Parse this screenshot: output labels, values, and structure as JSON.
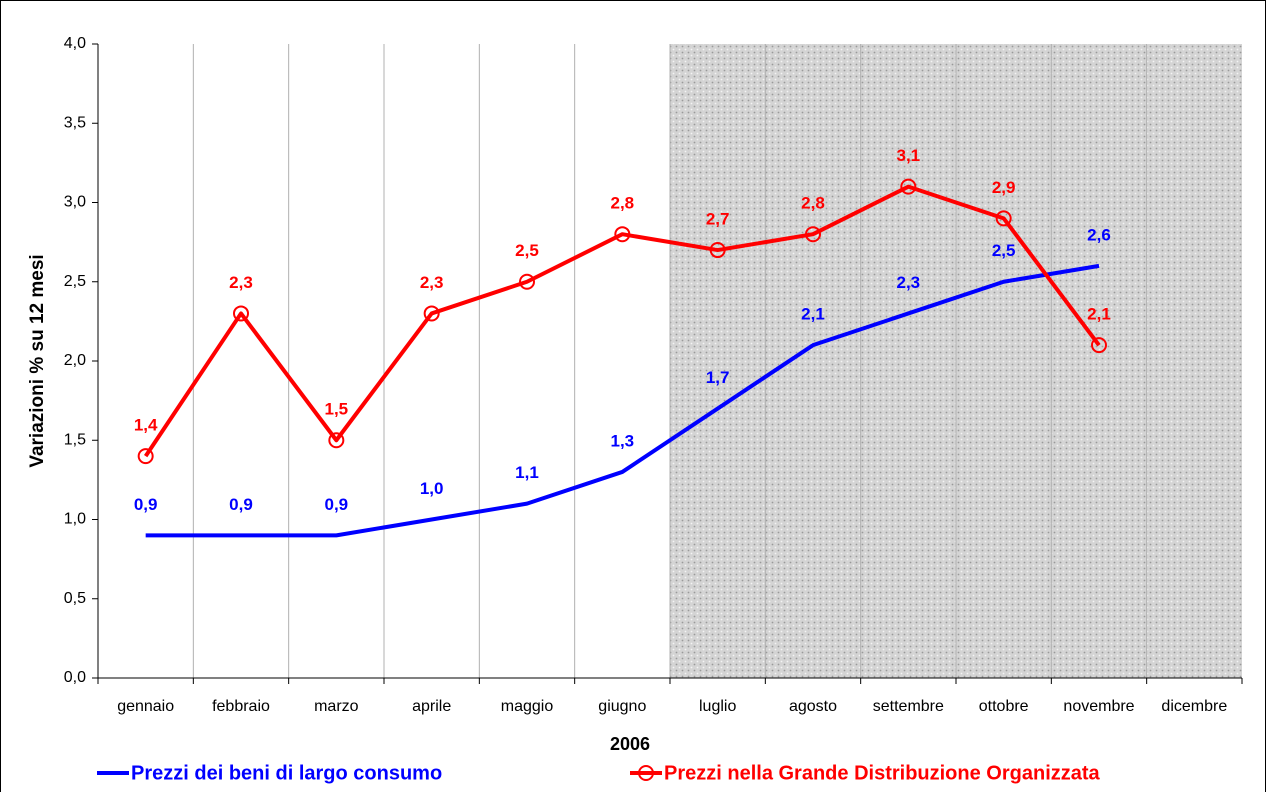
{
  "chart_data": {
    "type": "line",
    "x_label": "2006",
    "y_label": "Variazioni % su 12 mesi",
    "categories": [
      "gennaio",
      "febbraio",
      "marzo",
      "aprile",
      "maggio",
      "giugno",
      "luglio",
      "agosto",
      "settembre",
      "ottobre",
      "novembre",
      "dicembre"
    ],
    "series": [
      {
        "name": "Prezzi dei beni di largo consumo",
        "color": "#0000ff",
        "marker": "none",
        "values": [
          0.9,
          0.9,
          0.9,
          1.0,
          1.1,
          1.3,
          1.7,
          2.1,
          2.3,
          2.5,
          2.6,
          null
        ],
        "value_labels": [
          "0,9",
          "0,9",
          "0,9",
          "1,0",
          "1,1",
          "1,3",
          "1,7",
          "2,1",
          "2,3",
          "2,5",
          "2,6",
          null
        ]
      },
      {
        "name": "Prezzi nella Grande Distribuzione Organizzata",
        "color": "#ff0000",
        "marker": "circle",
        "values": [
          1.4,
          2.3,
          1.5,
          2.3,
          2.5,
          2.8,
          2.7,
          2.8,
          3.1,
          2.9,
          2.1,
          null
        ],
        "value_labels": [
          "1,4",
          "2,3",
          "1,5",
          "2,3",
          "2,5",
          "2,8",
          "2,7",
          "2,8",
          "3,1",
          "2,9",
          "2,1",
          null
        ]
      }
    ],
    "ylim": [
      0,
      4
    ],
    "yticks": [
      {
        "value": 0,
        "label": "0,0"
      },
      {
        "value": 0.5,
        "label": "0,5"
      },
      {
        "value": 1,
        "label": "1,0"
      },
      {
        "value": 1.5,
        "label": "1,5"
      },
      {
        "value": 2,
        "label": "2,0"
      },
      {
        "value": 2.5,
        "label": "2,5"
      },
      {
        "value": 3,
        "label": "3,0"
      },
      {
        "value": 3.5,
        "label": "3,5"
      },
      {
        "value": 4,
        "label": "4,0"
      }
    ],
    "shaded_from_index": 6,
    "legend": "bottom"
  }
}
